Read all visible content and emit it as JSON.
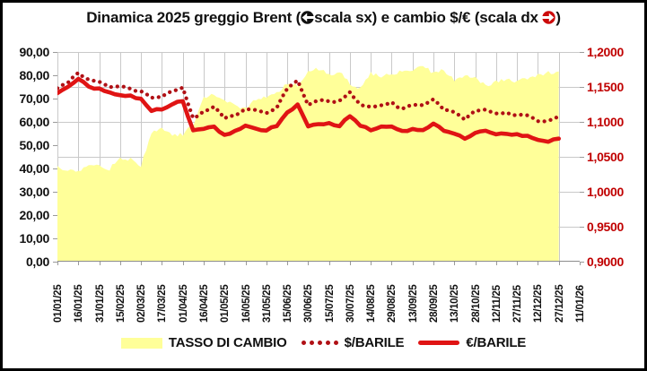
{
  "title": {
    "part1": "Dinamica 2025 greggio Brent (",
    "part2": "scala sx) e cambio $/€ (scala dx ",
    "part3": ")",
    "left_icon": "counterclockwise-left-arrow-badge",
    "right_icon": "clockwise-right-arrow-badge"
  },
  "colors": {
    "area_fill": "#ffff99",
    "dotted_line": "#b01015",
    "solid_line": "#e01414",
    "right_axis_text": "#c00000",
    "left_axis_text": "#111111",
    "gridline": "#c9c9c9",
    "frame_border": "#000000"
  },
  "legend": {
    "items": [
      {
        "label": "TASSO DI CAMBIO",
        "swatch": "area"
      },
      {
        "label": "$/BARILE",
        "swatch": "dotted"
      },
      {
        "label": "€/BARILE",
        "swatch": "solid"
      }
    ]
  },
  "axes": {
    "left": {
      "ticks": [
        "90,00",
        "80,00",
        "70,00",
        "60,00",
        "50,00",
        "40,00",
        "30,00",
        "20,00",
        "10,00",
        "0,00"
      ]
    },
    "right": {
      "ticks": [
        "1,2000",
        "1,1500",
        "1,1000",
        "1,0500",
        "1,0000",
        "0,9500",
        "0,9000"
      ]
    }
  },
  "chart_data": {
    "type": "area",
    "title": "Dinamica 2025 greggio Brent (scala sx) e cambio $/€ (scala dx)",
    "categories": [
      "01/01/25",
      "16/01/25",
      "31/01/25",
      "15/02/25",
      "02/03/25",
      "17/03/25",
      "01/04/25",
      "16/04/25",
      "01/05/25",
      "16/05/25",
      "31/05/25",
      "15/06/25",
      "30/06/25",
      "15/07/25",
      "30/07/25",
      "14/08/25",
      "29/08/25",
      "13/09/25",
      "28/09/25",
      "13/10/25",
      "28/10/25",
      "12/11/25",
      "27/11/25",
      "12/12/25",
      "27/12/25",
      "11/01/26"
    ],
    "points_per_interval": 2,
    "left_range": [
      0,
      90
    ],
    "right_range": [
      0.9,
      1.2
    ],
    "grid": "both",
    "legend_position": "bottom",
    "series": [
      {
        "name": "TASSO DI CAMBIO",
        "axis": "right",
        "style": "area",
        "color": "#ffff99",
        "values": [
          1.035,
          1.03,
          1.027,
          1.041,
          1.036,
          1.033,
          1.048,
          1.046,
          1.038,
          1.083,
          1.092,
          1.08,
          1.082,
          1.096,
          1.135,
          1.14,
          1.132,
          1.123,
          1.118,
          1.133,
          1.135,
          1.14,
          1.155,
          1.152,
          1.172,
          1.176,
          1.167,
          1.173,
          1.155,
          1.147,
          1.17,
          1.165,
          1.168,
          1.172,
          1.174,
          1.18,
          1.17,
          1.174,
          1.16,
          1.165,
          1.163,
          1.152,
          1.158,
          1.16,
          1.157,
          1.163,
          1.166,
          1.17,
          1.172
        ]
      },
      {
        "name": "$/BARILE",
        "axis": "left",
        "style": "dotted",
        "color": "#b01015",
        "values": [
          74.8,
          77.0,
          80.8,
          78.3,
          76.8,
          74.7,
          75.0,
          74.4,
          72.8,
          70.4,
          71.1,
          73.0,
          74.7,
          61.5,
          64.7,
          66.1,
          61.5,
          62.8,
          65.4,
          64.8,
          63.9,
          66.5,
          74.2,
          77.5,
          67.6,
          69.6,
          69.2,
          68.6,
          72.5,
          67.1,
          66.3,
          67.3,
          68.0,
          65.5,
          66.9,
          66.7,
          69.5,
          65.5,
          63.7,
          61.0,
          64.4,
          64.9,
          63.5,
          63.6,
          63.1,
          62.8,
          60.5,
          60.2,
          62.5
        ]
      },
      {
        "name": "€/BARILE",
        "axis": "left",
        "style": "solid",
        "color": "#e01414",
        "values": [
          72.3,
          74.8,
          78.7,
          75.2,
          74.1,
          72.3,
          71.6,
          71.1,
          70.1,
          65.0,
          65.1,
          67.6,
          69.0,
          56.1,
          57.0,
          58.0,
          54.3,
          55.9,
          58.5,
          57.2,
          56.3,
          58.3,
          64.2,
          67.3,
          57.7,
          59.2,
          59.3,
          58.5,
          62.8,
          58.5,
          56.7,
          57.8,
          58.2,
          55.9,
          57.0,
          56.5,
          59.4,
          55.8,
          54.9,
          52.9,
          55.4,
          56.3,
          54.8,
          54.8,
          54.5,
          54.0,
          51.9,
          51.5,
          52.8
        ]
      }
    ]
  }
}
